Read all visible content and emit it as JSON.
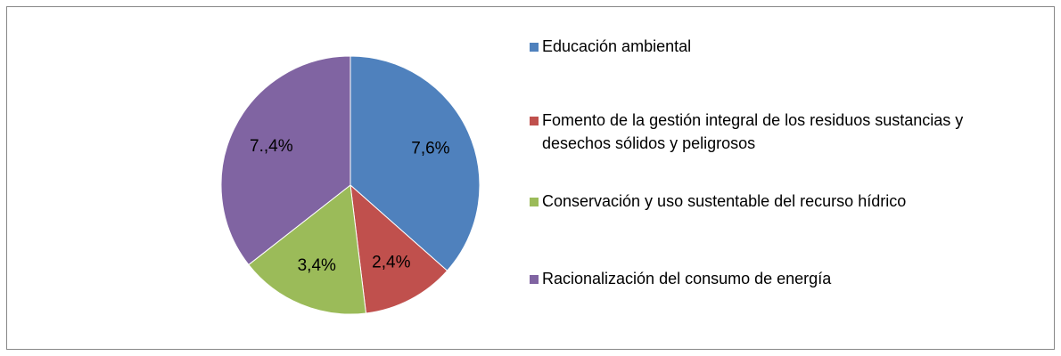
{
  "chart_data": {
    "type": "pie",
    "categories": [
      "Educación ambiental",
      "Fomento de la gestión integral de los residuos sustancias y desechos sólidos y peligrosos",
      "Conservación y uso sustentable del recurso hídrico",
      "Racionalización del consumo de energía"
    ],
    "values": [
      7.6,
      2.4,
      3.4,
      7.4
    ],
    "value_labels": [
      "7,6%",
      "2,4%",
      "3,4%",
      "7.,4%"
    ],
    "colors": [
      "#4f81bd",
      "#c0504d",
      "#9bbb59",
      "#8064a2"
    ]
  }
}
